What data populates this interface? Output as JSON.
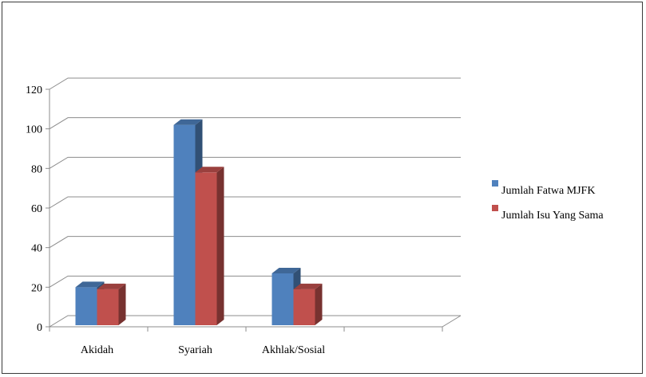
{
  "chart_data": {
    "type": "bar",
    "categories": [
      "Akidah",
      "Syariah",
      "Akhlak/Sosial",
      ""
    ],
    "series": [
      {
        "name": "Jumlah Fatwa MJFK",
        "values": [
          20,
          102,
          27,
          null
        ],
        "color": "#4f81bd"
      },
      {
        "name": "Jumlah Isu Yang Sama",
        "values": [
          19,
          78,
          19,
          null
        ],
        "color": "#c0504d"
      }
    ],
    "title": "",
    "xlabel": "",
    "ylabel": "",
    "ylim": [
      0,
      120
    ],
    "yticks": [
      0,
      20,
      40,
      60,
      80,
      100,
      120
    ],
    "grid": true,
    "legend_position": "right",
    "three_d": true
  }
}
